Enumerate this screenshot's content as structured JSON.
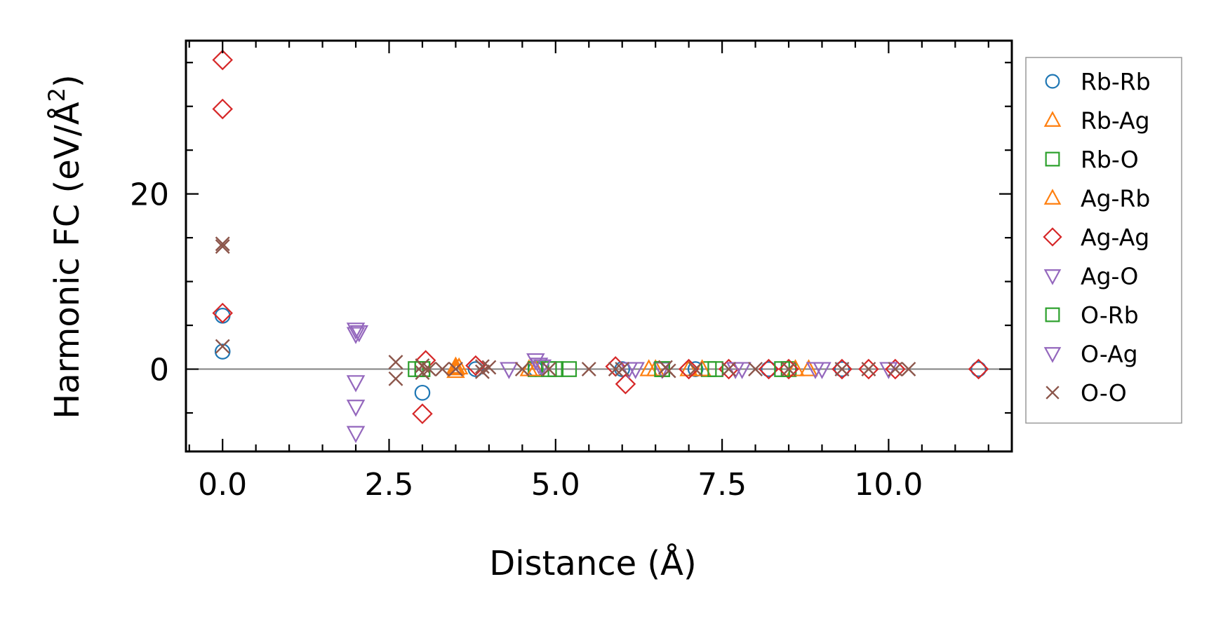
{
  "chart_data": {
    "type": "scatter",
    "title": "",
    "xlabel": "Distance (Å)",
    "ylabel": "Harmonic FC (eV/Å²)",
    "ylabel_main": "Harmonic FC (eV/Å",
    "ylabel_sup": "2",
    "ylabel_close": ")",
    "xlim": [
      -0.55,
      11.85
    ],
    "ylim": [
      -9.4,
      37.5
    ],
    "xticks": [
      0.0,
      2.5,
      5.0,
      7.5,
      10.0
    ],
    "xtick_labels": [
      "0.0",
      "2.5",
      "5.0",
      "7.5",
      "10.0"
    ],
    "yticks": [
      0,
      20
    ],
    "ytick_labels": [
      "0",
      "20"
    ],
    "zero_line": true,
    "legend_position": "outside-right",
    "series": [
      {
        "name": "Rb-Rb",
        "marker": "circle",
        "color": "#1f77b4",
        "x": [
          0.0,
          0.0,
          3.0,
          3.8,
          4.7,
          6.0,
          7.1,
          8.2,
          9.3,
          11.35
        ],
        "y": [
          6.1,
          2.0,
          -2.7,
          0.0,
          0.0,
          0.0,
          0.0,
          0.0,
          0.0,
          0.0
        ]
      },
      {
        "name": "Rb-Ag",
        "marker": "triangle-up",
        "color": "#ff7f0e",
        "x": [
          3.5,
          3.5,
          3.55,
          4.6,
          6.5,
          7.0,
          8.8
        ],
        "y": [
          0.3,
          -0.2,
          0.2,
          0.0,
          0.0,
          0.0,
          0.0
        ]
      },
      {
        "name": "Rb-O",
        "marker": "square",
        "color": "#2ca02c",
        "x": [
          2.9,
          3.0,
          4.7,
          5.0,
          5.2,
          6.6,
          7.3,
          8.5
        ],
        "y": [
          0.0,
          0.0,
          0.0,
          0.0,
          0.0,
          0.0,
          0.0,
          0.0
        ]
      },
      {
        "name": "Ag-Rb",
        "marker": "triangle-up",
        "color": "#ff7f0e",
        "x": [
          3.5,
          4.7,
          6.4,
          7.2,
          8.6
        ],
        "y": [
          0.1,
          0.0,
          0.0,
          0.0,
          0.0
        ]
      },
      {
        "name": "Ag-Ag",
        "marker": "diamond",
        "color": "#d62728",
        "x": [
          0.0,
          0.0,
          0.0,
          3.05,
          3.0,
          3.8,
          5.9,
          6.05,
          7.0,
          7.6,
          8.2,
          8.5,
          9.3,
          9.7,
          10.1,
          11.35
        ],
        "y": [
          35.3,
          29.7,
          6.4,
          1.0,
          -5.1,
          0.4,
          0.3,
          -1.7,
          0.0,
          0.0,
          0.0,
          0.0,
          0.0,
          0.0,
          0.0,
          0.0
        ]
      },
      {
        "name": "Ag-O",
        "marker": "triangle-down",
        "color": "#9467bd",
        "x": [
          2.0,
          2.0,
          2.0,
          2.0,
          2.0,
          4.3,
          4.7,
          4.75,
          6.2,
          6.6,
          7.7,
          9.0,
          10.0
        ],
        "y": [
          4.5,
          4.0,
          -1.5,
          -4.3,
          -7.3,
          0.0,
          1.0,
          0.5,
          0.0,
          0.0,
          0.0,
          0.0,
          0.0
        ]
      },
      {
        "name": "O-Rb",
        "marker": "square",
        "color": "#2ca02c",
        "x": [
          3.0,
          4.9,
          6.6,
          7.4,
          8.4
        ],
        "y": [
          0.0,
          0.0,
          0.0,
          0.0,
          0.0
        ]
      },
      {
        "name": "O-Ag",
        "marker": "triangle-down",
        "color": "#9467bd",
        "x": [
          2.05,
          4.8,
          6.1,
          7.8,
          8.9
        ],
        "y": [
          4.2,
          0.3,
          0.0,
          0.0,
          0.0
        ]
      },
      {
        "name": "O-O",
        "marker": "x",
        "color": "#8c564b",
        "x": [
          0.0,
          0.0,
          0.0,
          2.6,
          2.6,
          3.0,
          3.0,
          3.1,
          3.3,
          3.5,
          3.9,
          3.9,
          4.0,
          4.5,
          4.9,
          5.5,
          5.9,
          6.0,
          6.65,
          6.7,
          7.1,
          7.6,
          8.0,
          8.5,
          9.3,
          9.7,
          10.1,
          10.3
        ],
        "y": [
          14.3,
          14.0,
          2.6,
          0.8,
          -1.1,
          0.4,
          -0.4,
          0.0,
          0.0,
          0.0,
          0.3,
          -0.3,
          0.2,
          0.0,
          0.0,
          0.0,
          0.0,
          0.0,
          0.2,
          -0.2,
          0.0,
          0.0,
          0.0,
          0.0,
          0.0,
          0.0,
          0.0,
          0.0
        ]
      }
    ]
  }
}
